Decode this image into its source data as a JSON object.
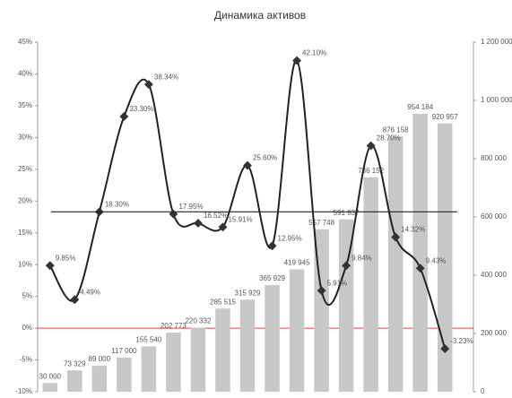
{
  "chart_data": {
    "type": "bar-line",
    "title": "Динамика активов",
    "categories": [
      null,
      null,
      null,
      null,
      null,
      null,
      null,
      null,
      null,
      null,
      null,
      null,
      null,
      null,
      null,
      null,
      null
    ],
    "series": [
      {
        "type": "bar",
        "axis": "y2",
        "color": "#c8c8c8",
        "values": [
          30000,
          73329,
          89000,
          117000,
          155540,
          202773,
          220332,
          285515,
          315929,
          365929,
          419945,
          557748,
          591837,
          736152,
          876158,
          954184,
          920957
        ],
        "value_labels": [
          "30 000",
          "73 329",
          "89 000",
          "117 000",
          "155 540",
          "202 773",
          "220 332",
          "285 515",
          "315 929",
          "365 929",
          "419 945",
          "557 748",
          "591 837",
          "736 152",
          "876 158",
          "954 184",
          "920 957"
        ]
      },
      {
        "type": "line",
        "axis": "y",
        "color": "#222222",
        "values": [
          9.85,
          4.49,
          18.3,
          33.3,
          38.34,
          17.95,
          16.52,
          15.91,
          25.6,
          12.95,
          42.1,
          5.91,
          9.84,
          28.7,
          14.32,
          9.43,
          -3.23
        ],
        "value_labels": [
          "9.85%",
          "4.49%",
          "18.30%",
          "33.30%",
          "38.34%",
          "17.95%",
          "16.52%",
          "15.91%",
          "25.60%",
          "12.95%",
          "42.10%",
          "5.91%",
          "9.84%",
          "28.70%",
          "14.32%",
          "9.43%",
          "-3.23%"
        ]
      }
    ],
    "reference_line": 18.3,
    "ylim": [
      -10,
      45
    ],
    "yticks": [
      {
        "value": -10,
        "label": "-10%"
      },
      {
        "value": -5,
        "label": "-5%"
      },
      {
        "value": 0,
        "label": "0%"
      },
      {
        "value": 5,
        "label": "5%"
      },
      {
        "value": 10,
        "label": "10%"
      },
      {
        "value": 15,
        "label": "15%"
      },
      {
        "value": 20,
        "label": "20%"
      },
      {
        "value": 25,
        "label": "25%"
      },
      {
        "value": 30,
        "label": "30%"
      },
      {
        "value": 35,
        "label": "35%"
      },
      {
        "value": 40,
        "label": "40%"
      },
      {
        "value": 45,
        "label": "45%"
      }
    ],
    "y2lim": [
      0,
      1200000
    ],
    "y2ticks": [
      0,
      {
        "value": 200000,
        "label": "200 000"
      },
      {
        "value": 400000,
        "label": "400 000"
      },
      {
        "value": 600000,
        "label": "600 000"
      },
      {
        "value": 800000,
        "label": "800 000"
      },
      {
        "value": 1000000,
        "label": "1 000 000"
      },
      {
        "value": 1200000,
        "label": "1 200 000"
      }
    ]
  }
}
